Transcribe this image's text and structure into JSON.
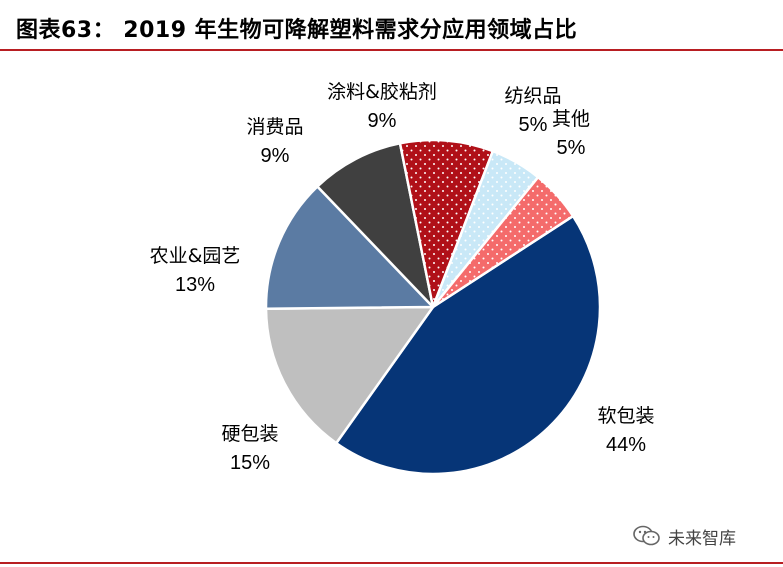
{
  "header": {
    "title": "图表63：  2019 年生物可降解塑料需求分应用领域占比"
  },
  "watermark": {
    "text": "未来智库",
    "icon": "wechat-icon"
  },
  "chart_data": {
    "type": "pie",
    "start_angle_deg": 57,
    "direction": "clockwise",
    "slices": [
      {
        "label": "软包装",
        "value": 44,
        "pct_text": "44%",
        "color": "#063577",
        "pattern": "none"
      },
      {
        "label": "硬包装",
        "value": 15,
        "pct_text": "15%",
        "color": "#bfbfbf",
        "pattern": "none"
      },
      {
        "label": "农业&园艺",
        "value": 13,
        "pct_text": "13%",
        "color": "#5b7ba3",
        "pattern": "none"
      },
      {
        "label": "消费品",
        "value": 9,
        "pct_text": "9%",
        "color": "#404040",
        "pattern": "none"
      },
      {
        "label": "涂料&胶粘剂",
        "value": 9,
        "pct_text": "9%",
        "color": "#b01018",
        "pattern": "dots"
      },
      {
        "label": "纺织品",
        "value": 5,
        "pct_text": "5%",
        "color": "#c9e8f7",
        "pattern": "dots"
      },
      {
        "label": "其他",
        "value": 5,
        "pct_text": "5%",
        "color": "#f46b6b",
        "pattern": "dots"
      }
    ]
  }
}
